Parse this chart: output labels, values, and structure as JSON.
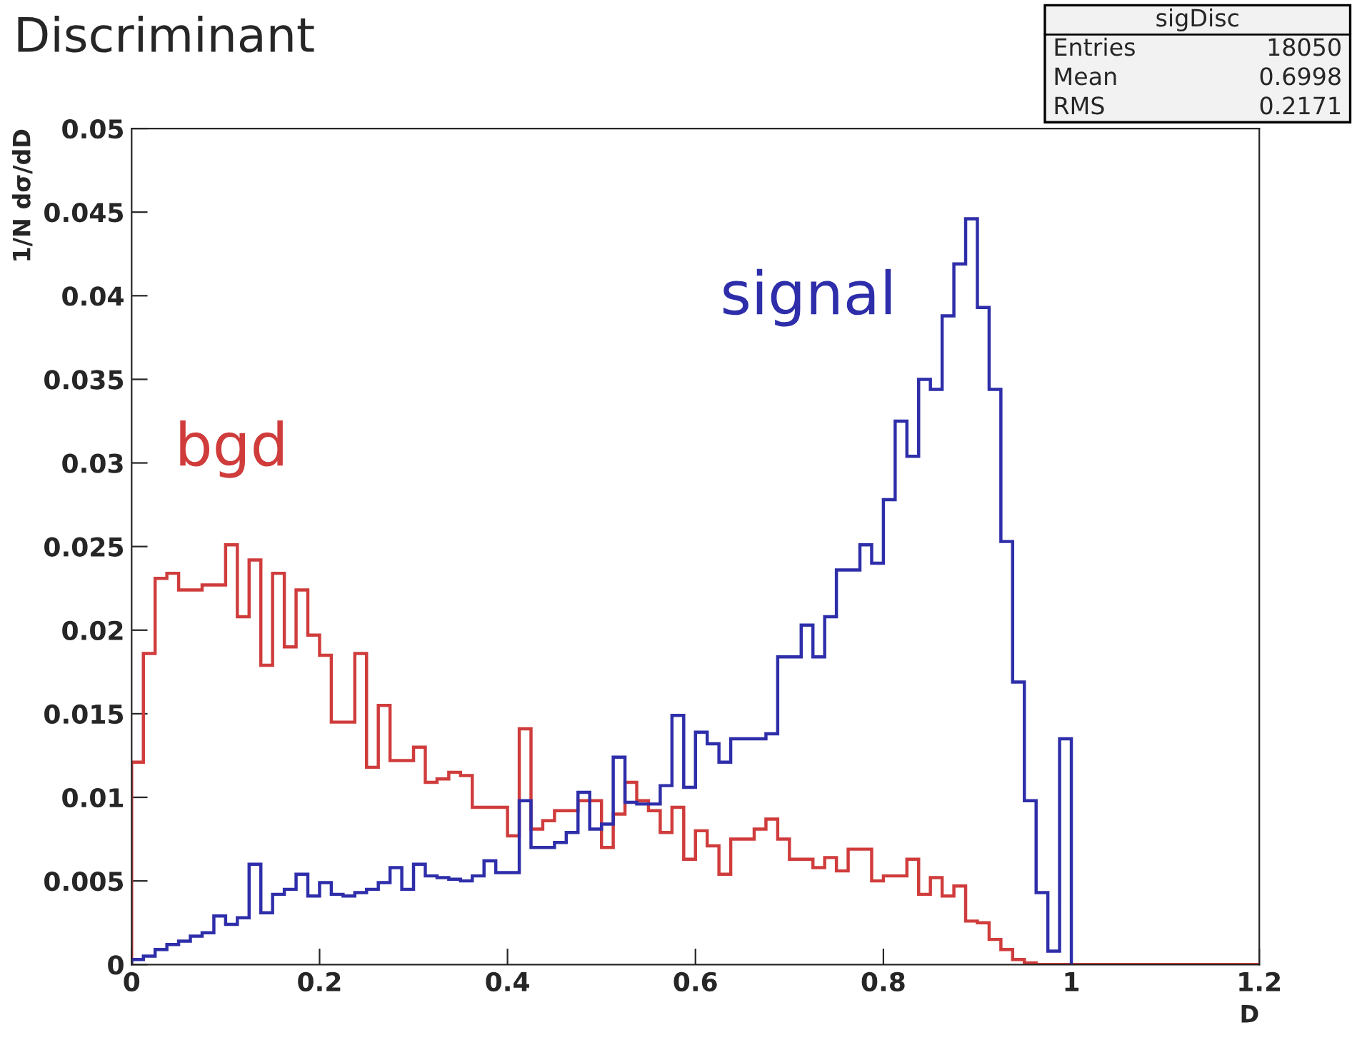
{
  "chart_data": {
    "type": "histogram",
    "title": "Discriminant",
    "xlabel": "D",
    "ylabel": "1/N dσ/dD",
    "bins": [
      0,
      0.0125,
      0.025,
      0.0375,
      0.05,
      0.0625,
      0.075,
      0.0875,
      0.1,
      0.1125,
      0.125,
      0.1375,
      0.15,
      0.1625,
      0.175,
      0.1875,
      0.2,
      0.2125,
      0.225,
      0.2375,
      0.25,
      0.2625,
      0.275,
      0.2875,
      0.3,
      0.3125,
      0.325,
      0.3375,
      0.35,
      0.3625,
      0.375,
      0.3875,
      0.4,
      0.4125,
      0.425,
      0.4375,
      0.45,
      0.4625,
      0.475,
      0.4875,
      0.5,
      0.5125,
      0.525,
      0.5375,
      0.55,
      0.5625,
      0.575,
      0.5875,
      0.6,
      0.6125,
      0.625,
      0.6375,
      0.65,
      0.6625,
      0.675,
      0.6875,
      0.7,
      0.7125,
      0.725,
      0.7375,
      0.75,
      0.7625,
      0.775,
      0.7875,
      0.8,
      0.8125,
      0.825,
      0.8375,
      0.85,
      0.8625,
      0.875,
      0.8875,
      0.9,
      0.9125,
      0.925,
      0.9375,
      0.95,
      0.9625,
      0.975,
      0.9875,
      1.0,
      1.0125,
      1.025,
      1.0375,
      1.05,
      1.0625,
      1.075,
      1.0875,
      1.1,
      1.1125,
      1.125,
      1.1375,
      1.15,
      1.1625,
      1.175,
      1.1875,
      1.2
    ],
    "series": [
      {
        "name": "bgd",
        "color": "#d03c3c",
        "values": [
          0.0121,
          0.0186,
          0.0231,
          0.0234,
          0.0224,
          0.0224,
          0.0227,
          0.0227,
          0.0251,
          0.0208,
          0.0242,
          0.0179,
          0.0234,
          0.019,
          0.0224,
          0.0197,
          0.0185,
          0.0145,
          0.0145,
          0.0186,
          0.0118,
          0.0155,
          0.0122,
          0.0122,
          0.013,
          0.0109,
          0.0111,
          0.0115,
          0.0113,
          0.0094,
          0.0094,
          0.0094,
          0.0077,
          0.0141,
          0.0081,
          0.0086,
          0.0092,
          0.0092,
          0.0098,
          0.0098,
          0.007,
          0.009,
          0.0109,
          0.0098,
          0.0092,
          0.0079,
          0.0094,
          0.0063,
          0.008,
          0.0071,
          0.0054,
          0.0075,
          0.0075,
          0.0081,
          0.0087,
          0.0075,
          0.0063,
          0.0063,
          0.0058,
          0.0064,
          0.0056,
          0.0069,
          0.0069,
          0.005,
          0.0053,
          0.0053,
          0.0063,
          0.0042,
          0.0052,
          0.0041,
          0.0047,
          0.0026,
          0.0025,
          0.0015,
          0.0009,
          0.0003,
          0.0001,
          0,
          0,
          0,
          0,
          0,
          0,
          0,
          0,
          0,
          0,
          0,
          0,
          0,
          0,
          0,
          0,
          0,
          0,
          0
        ]
      },
      {
        "name": "signal",
        "color": "#2e2eaa",
        "bins": [
          0,
          0.0125,
          0.025,
          0.0375,
          0.05,
          0.0625,
          0.075,
          0.0875,
          0.1,
          0.1125,
          0.125,
          0.1375,
          0.15,
          0.1625,
          0.175,
          0.1875,
          0.2,
          0.2125,
          0.225,
          0.2375,
          0.25,
          0.2625,
          0.275,
          0.2875,
          0.3,
          0.3125,
          0.325,
          0.3375,
          0.35,
          0.3625,
          0.375,
          0.3875,
          0.4,
          0.4125,
          0.425,
          0.4375,
          0.45,
          0.4625,
          0.475,
          0.4875,
          0.5,
          0.5125,
          0.525,
          0.5375,
          0.55,
          0.5625,
          0.575,
          0.5875,
          0.6,
          0.6125,
          0.625,
          0.6375,
          0.65,
          0.6625,
          0.675,
          0.6875,
          0.7,
          0.7125,
          0.725,
          0.7375,
          0.75,
          0.7625,
          0.775,
          0.7875,
          0.8,
          0.8125,
          0.825,
          0.8375,
          0.85,
          0.8625,
          0.875,
          0.8875,
          0.9,
          0.9125,
          0.925,
          0.9375,
          0.95,
          0.9625,
          0.975,
          0.9875,
          1.0
        ],
        "values": [
          0.0003,
          0.0005,
          0.0009,
          0.0012,
          0.0014,
          0.0017,
          0.0019,
          0.0029,
          0.0024,
          0.0028,
          0.006,
          0.0031,
          0.0042,
          0.0045,
          0.0054,
          0.0041,
          0.0049,
          0.0042,
          0.0041,
          0.0043,
          0.0045,
          0.0049,
          0.0058,
          0.0045,
          0.006,
          0.0053,
          0.0052,
          0.0051,
          0.005,
          0.0053,
          0.0062,
          0.0055,
          0.0055,
          0.0098,
          0.007,
          0.007,
          0.0073,
          0.0079,
          0.0103,
          0.0081,
          0.0084,
          0.0124,
          0.0097,
          0.0096,
          0.0096,
          0.0107,
          0.0149,
          0.0106,
          0.0139,
          0.0132,
          0.0121,
          0.0135,
          0.0135,
          0.0135,
          0.0138,
          0.0184,
          0.0184,
          0.0203,
          0.0184,
          0.0208,
          0.0236,
          0.0236,
          0.0251,
          0.024,
          0.0278,
          0.0325,
          0.0304,
          0.035,
          0.0344,
          0.0388,
          0.0419,
          0.0446,
          0.0393,
          0.0344,
          0.0253,
          0.0169,
          0.0098,
          0.0043,
          0.0008,
          0.0135
        ]
      }
    ],
    "annotations": [
      "sigDisc",
      "Entries 18050",
      "Mean 0.6998",
      "RMS 0.2171"
    ],
    "xlim": [
      0,
      1.2
    ],
    "ylim": [
      0,
      0.05
    ],
    "xticks": [
      0,
      0.2,
      0.4,
      0.6,
      0.8,
      1,
      1.2
    ],
    "yticks": [
      0,
      0.005,
      0.01,
      0.015,
      0.02,
      0.025,
      0.03,
      0.035,
      0.04,
      0.045,
      0.05
    ],
    "grid": false,
    "legend": false
  }
}
